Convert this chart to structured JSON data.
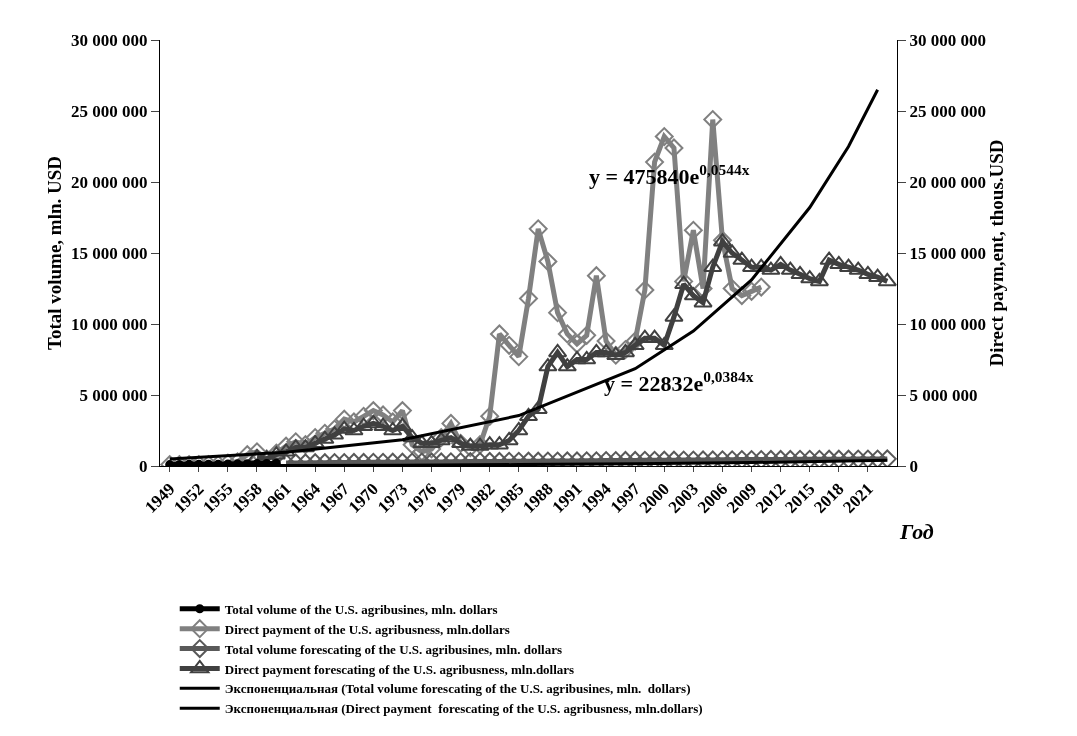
{
  "chart_data": {
    "type": "line",
    "xlabel": "Год",
    "ylabel": "Total volume, mln. USD",
    "y2label": "Direct paym,ent, thous.USD",
    "xlim": [
      1948,
      2024
    ],
    "xticks": [
      1949,
      1952,
      1955,
      1958,
      1961,
      1964,
      1967,
      1970,
      1973,
      1976,
      1979,
      1982,
      1985,
      1988,
      1991,
      1994,
      1997,
      2000,
      2003,
      2006,
      2009,
      2012,
      2015,
      2018,
      2021
    ],
    "ylim": [
      0,
      30000000
    ],
    "yticks": [
      {
        "value": 0,
        "label": "0"
      },
      {
        "value": 5000000,
        "label": "5 000 000"
      },
      {
        "value": 10000000,
        "label": "10 000 000"
      },
      {
        "value": 15000000,
        "label": "15 000 000"
      },
      {
        "value": 20000000,
        "label": "20 000 000"
      },
      {
        "value": 25000000,
        "label": "25 000 000"
      },
      {
        "value": 30000000,
        "label": "30 000 000"
      }
    ],
    "y2lim": [
      0,
      30000000
    ],
    "y2ticks": [
      {
        "value": 0,
        "label": "0"
      },
      {
        "value": 5000000,
        "label": "5 000 000"
      },
      {
        "value": 10000000,
        "label": "10 000 000"
      },
      {
        "value": 15000000,
        "label": "15 000 000"
      },
      {
        "value": 20000000,
        "label": "20 000 000"
      },
      {
        "value": 25000000,
        "label": "25 000 000"
      },
      {
        "value": 30000000,
        "label": "30 000 000"
      }
    ],
    "grid": false,
    "legend": "bottom",
    "series": [
      {
        "name": "Total volume of the U.S. agribusines, mln. dollars",
        "color": "#000000",
        "marker": "circle",
        "x": [
          1949,
          1950,
          1951,
          1952,
          1953,
          1954,
          1955,
          1956,
          1957,
          1958,
          1959,
          1960
        ],
        "values": [
          100000,
          110000,
          120000,
          120000,
          130000,
          130000,
          140000,
          150000,
          160000,
          170000,
          180000,
          190000
        ]
      },
      {
        "name": "Direct payment of the U.S. agribusness, mln.dollars",
        "color": "#808080",
        "marker": "diamond",
        "x": [
          1949,
          1950,
          1951,
          1952,
          1953,
          1954,
          1955,
          1956,
          1957,
          1958,
          1959,
          1960,
          1961,
          1962,
          1963,
          1964,
          1965,
          1966,
          1967,
          1968,
          1969,
          1970,
          1971,
          1972,
          1973,
          1974,
          1975,
          1976,
          1977,
          1978,
          1979,
          1980,
          1981,
          1982,
          1983,
          1984,
          1985,
          1986,
          1987,
          1988,
          1989,
          1990,
          1991,
          1992,
          1993,
          1994,
          1995,
          1996,
          1997,
          1998,
          1999,
          2000,
          2001,
          2002,
          2003,
          2004,
          2005,
          2006,
          2007,
          2008,
          2009,
          2010
        ],
        "values": [
          100000,
          100000,
          100000,
          100000,
          100000,
          100000,
          200000,
          300000,
          800000,
          1000000,
          500000,
          900000,
          1400000,
          1700000,
          1500000,
          2000000,
          2300000,
          2600000,
          3300000,
          3100000,
          3500000,
          3900000,
          3600000,
          3100000,
          3900000,
          1500000,
          1000000,
          1200000,
          2000000,
          3000000,
          1600000,
          1300000,
          1500000,
          3500000,
          9300000,
          8500000,
          7700000,
          11800000,
          16700000,
          14400000,
          10800000,
          9300000,
          8600000,
          9200000,
          13400000,
          8800000,
          7800000,
          8200000,
          8800000,
          12400000,
          21400000,
          23200000,
          22400000,
          13000000,
          16600000,
          12500000,
          24400000,
          15900000,
          12500000,
          12000000,
          12300000,
          12600000
        ]
      },
      {
        "name": "Total volume forescating of the U.S. agribusines, mln. dollars",
        "color": "#595959",
        "marker": "diamond",
        "x": [
          1961,
          1962,
          1963,
          1964,
          1965,
          1966,
          1967,
          1968,
          1969,
          1970,
          1971,
          1972,
          1973,
          1974,
          1975,
          1976,
          1977,
          1978,
          1979,
          1980,
          1981,
          1982,
          1983,
          1984,
          1985,
          1986,
          1987,
          1988,
          1989,
          1990,
          1991,
          1992,
          1993,
          1994,
          1995,
          1996,
          1997,
          1998,
          1999,
          2000,
          2001,
          2002,
          2003,
          2004,
          2005,
          2006,
          2007,
          2008,
          2009,
          2010,
          2011,
          2012,
          2013,
          2014,
          2015,
          2016,
          2017,
          2018,
          2019,
          2020,
          2021,
          2022,
          2023
        ],
        "values": [
          210000,
          220000,
          220000,
          230000,
          230000,
          240000,
          240000,
          250000,
          250000,
          260000,
          260000,
          270000,
          270000,
          280000,
          280000,
          290000,
          290000,
          300000,
          300000,
          310000,
          310000,
          320000,
          320000,
          330000,
          330000,
          340000,
          340000,
          350000,
          350000,
          360000,
          360000,
          370000,
          370000,
          380000,
          380000,
          390000,
          390000,
          400000,
          400000,
          410000,
          410000,
          420000,
          420000,
          430000,
          430000,
          440000,
          440000,
          450000,
          450000,
          450000,
          460000,
          460000,
          460000,
          470000,
          470000,
          470000,
          480000,
          480000,
          480000,
          490000,
          490000,
          490000,
          500000
        ]
      },
      {
        "name": "Direct payment forescating of the U.S. agribusness, mln.dollars",
        "color": "#404040",
        "marker": "triangle",
        "x": [
          1958,
          1959,
          1960,
          1961,
          1962,
          1963,
          1964,
          1965,
          1966,
          1967,
          1968,
          1969,
          1970,
          1971,
          1972,
          1973,
          1974,
          1975,
          1976,
          1977,
          1978,
          1979,
          1980,
          1981,
          1982,
          1983,
          1984,
          1985,
          1986,
          1987,
          1988,
          1989,
          1990,
          1991,
          1992,
          1993,
          1994,
          1995,
          1996,
          1997,
          1998,
          1999,
          2000,
          2001,
          2002,
          2003,
          2004,
          2005,
          2006,
          2007,
          2008,
          2009,
          2010,
          2011,
          2012,
          2013,
          2014,
          2015,
          2016,
          2017,
          2018,
          2019,
          2020,
          2021,
          2022,
          2023
        ],
        "values": [
          600000,
          500000,
          800000,
          1000000,
          1300000,
          1300000,
          1600000,
          1900000,
          2200000,
          2600000,
          2500000,
          2800000,
          3000000,
          2800000,
          2500000,
          2800000,
          2000000,
          1600000,
          1600000,
          1800000,
          2000000,
          1600000,
          1400000,
          1400000,
          1500000,
          1500000,
          1800000,
          2500000,
          3500000,
          4000000,
          7000000,
          8000000,
          7000000,
          7500000,
          7500000,
          8000000,
          8000000,
          7800000,
          8000000,
          8500000,
          9000000,
          9000000,
          8500000,
          10500000,
          12800000,
          12000000,
          11500000,
          14000000,
          15800000,
          15000000,
          14500000,
          14000000,
          14000000,
          13800000,
          14200000,
          13800000,
          13500000,
          13200000,
          13000000,
          14500000,
          14200000,
          14000000,
          13800000,
          13500000,
          13300000,
          13000000
        ]
      },
      {
        "name": "Экспоненциальная (Total volume forescating of the U.S. agribusines, mln.  dollars)",
        "color": "#000000",
        "marker": "none",
        "x": [
          1949,
          1961,
          1973,
          1985,
          1997,
          2009,
          2023
        ],
        "values": [
          20000,
          40000,
          60000,
          100000,
          150000,
          240000,
          410000
        ]
      },
      {
        "name": "Экспоненциальная (Direct payment  forescating of the U.S. agribusness, mln.dollars)",
        "color": "#000000",
        "marker": "none",
        "x": [
          1949,
          1961,
          1973,
          1985,
          1997,
          2003,
          2009,
          2015,
          2019,
          2022
        ],
        "values": [
          500000,
          970000,
          1850000,
          3550000,
          6850000,
          9500000,
          13100000,
          18200000,
          22500000,
          26500000
        ]
      }
    ],
    "annotations": [
      "y = 475840e$^{0,0544x}$",
      "y = 22832e$^{0,0384x}$"
    ]
  }
}
